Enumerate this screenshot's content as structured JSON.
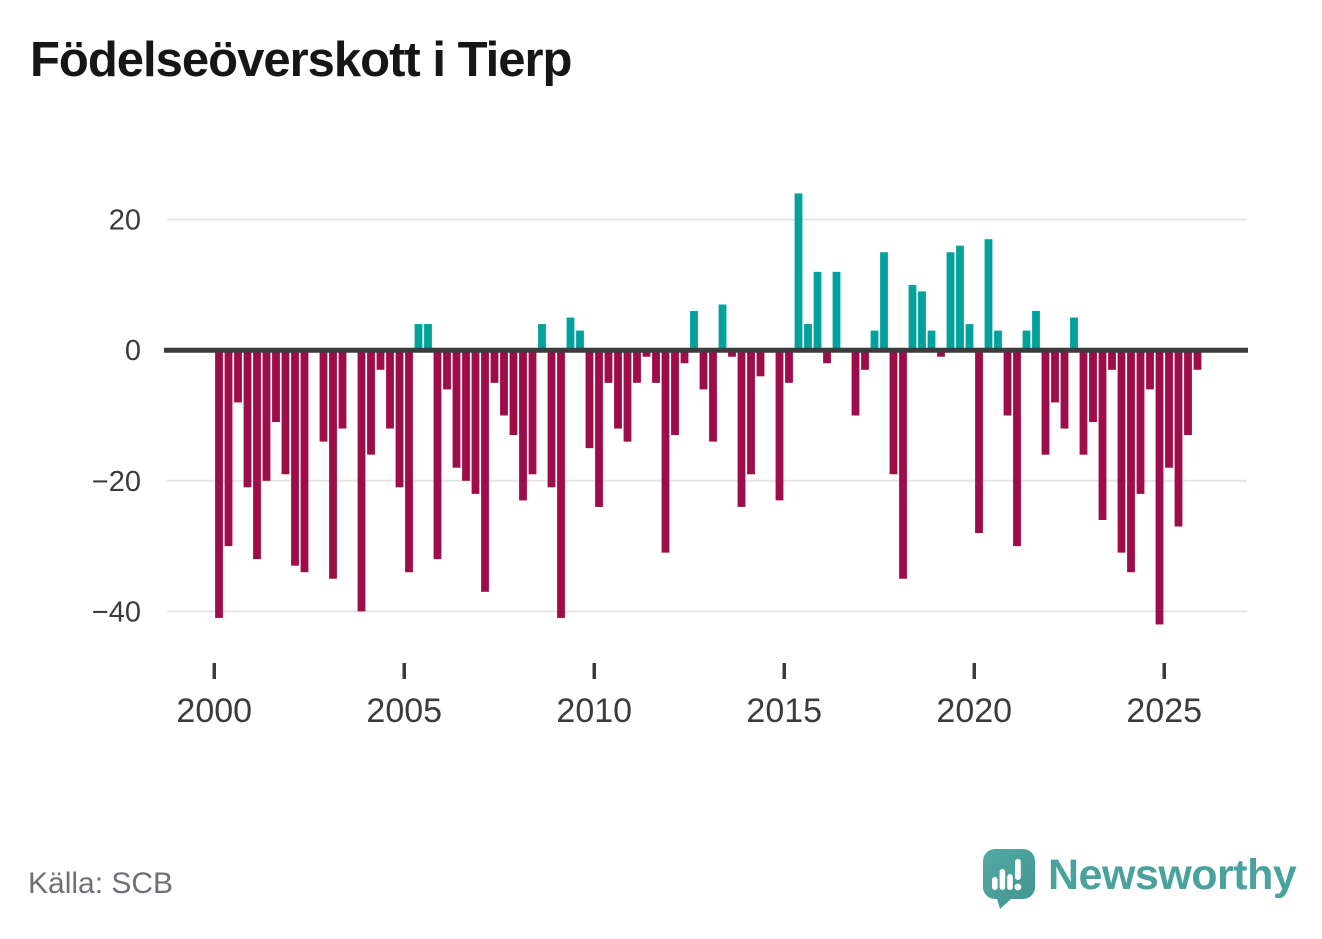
{
  "title": "Födelseöverskott i Tierp",
  "source": "Källa: SCB",
  "brand": {
    "name": "Newsworthy",
    "color": "#49a39c",
    "icon": "speech-bubble-bar-chart-exclamation"
  },
  "chart_data": {
    "type": "bar",
    "title": "Födelseöverskott i Tierp",
    "xlabel": "",
    "ylabel": "",
    "x_unit": "quarter",
    "ylim": [
      -45,
      27
    ],
    "yticks": [
      20,
      0,
      -20,
      -40
    ],
    "xticks": [
      2000,
      2005,
      2010,
      2015,
      2020,
      2025
    ],
    "grid": "horizontal",
    "legend": "none",
    "positive_color": "#00a29b",
    "negative_color": "#9c0d49",
    "zero_line_color": "#3c3c3c",
    "gridline_color": "#e5e5e5",
    "axis_text_color": "#3b3b3b",
    "quarters": [
      {
        "year": 2000,
        "values": [
          -41,
          -30,
          -8,
          -21
        ]
      },
      {
        "year": 2001,
        "values": [
          -32,
          -20,
          -11,
          -19
        ]
      },
      {
        "year": 2002,
        "values": [
          -33,
          -34,
          0,
          -14
        ]
      },
      {
        "year": 2003,
        "values": [
          -35,
          -12,
          0,
          -40
        ]
      },
      {
        "year": 2004,
        "values": [
          -16,
          -3,
          -12,
          -21
        ]
      },
      {
        "year": 2005,
        "values": [
          -34,
          4,
          4,
          -32
        ]
      },
      {
        "year": 2006,
        "values": [
          -6,
          -18,
          -20,
          -22
        ]
      },
      {
        "year": 2007,
        "values": [
          -37,
          -5,
          -10,
          -13
        ]
      },
      {
        "year": 2008,
        "values": [
          -23,
          -19,
          4,
          -21
        ]
      },
      {
        "year": 2009,
        "values": [
          -41,
          5,
          3,
          -15
        ]
      },
      {
        "year": 2010,
        "values": [
          -24,
          -5,
          -12,
          -14
        ]
      },
      {
        "year": 2011,
        "values": [
          -5,
          -1,
          -5,
          -31
        ]
      },
      {
        "year": 2012,
        "values": [
          -13,
          -2,
          6,
          -6
        ]
      },
      {
        "year": 2013,
        "values": [
          -14,
          7,
          -1,
          -24
        ]
      },
      {
        "year": 2014,
        "values": [
          -19,
          -4,
          0,
          -23
        ]
      },
      {
        "year": 2015,
        "values": [
          -5,
          24,
          4,
          12
        ]
      },
      {
        "year": 2016,
        "values": [
          -2,
          12,
          0,
          -10
        ]
      },
      {
        "year": 2017,
        "values": [
          -3,
          3,
          15,
          -19
        ]
      },
      {
        "year": 2018,
        "values": [
          -35,
          10,
          9,
          3
        ]
      },
      {
        "year": 2019,
        "values": [
          -1,
          15,
          16,
          4
        ]
      },
      {
        "year": 2020,
        "values": [
          -28,
          17,
          3,
          -10
        ]
      },
      {
        "year": 2021,
        "values": [
          -30,
          3,
          6,
          -16
        ]
      },
      {
        "year": 2022,
        "values": [
          -8,
          -12,
          5,
          -16
        ]
      },
      {
        "year": 2023,
        "values": [
          -11,
          -26,
          -3,
          -31
        ]
      },
      {
        "year": 2024,
        "values": [
          -34,
          -22,
          -6,
          -42
        ]
      },
      {
        "year": 2025,
        "values": [
          -18,
          -27,
          -13,
          -3
        ]
      }
    ]
  }
}
